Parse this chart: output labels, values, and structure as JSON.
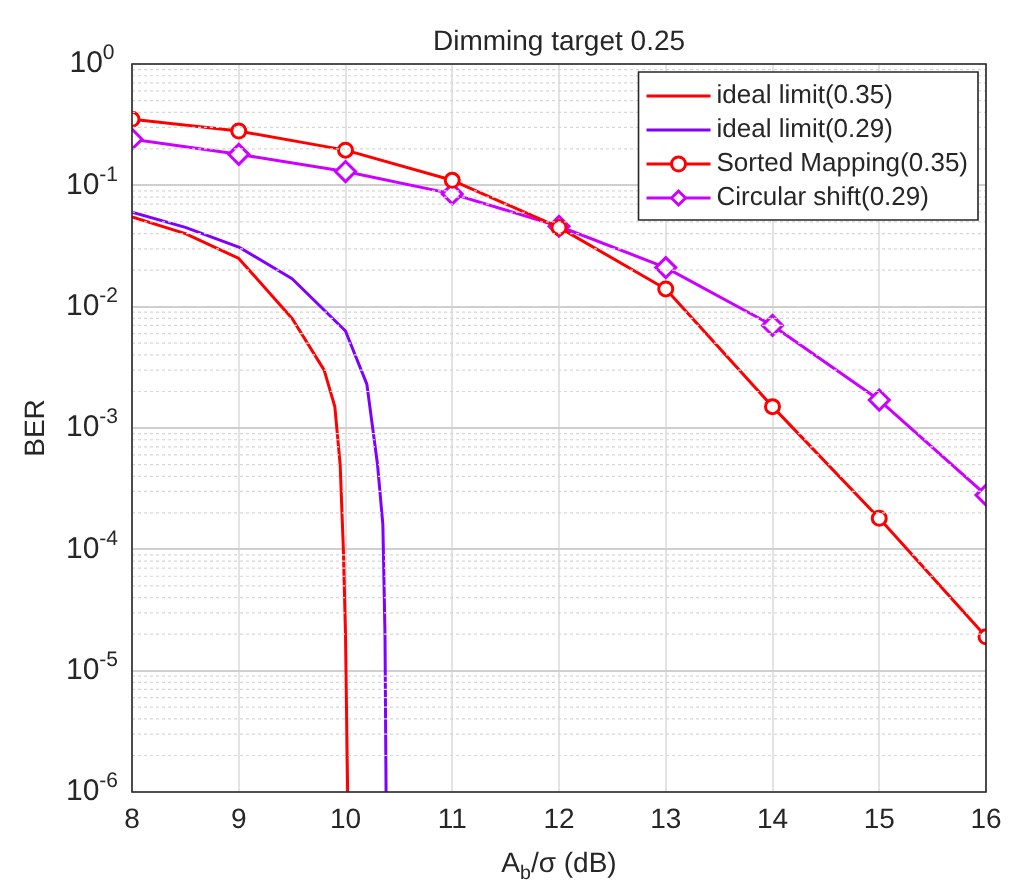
{
  "chart_data": {
    "type": "line",
    "title": "Dimming target 0.25",
    "xlabel": "A$_{b}$/σ (dB)",
    "ylabel": "BER",
    "xlim": [
      8,
      16
    ],
    "xticks": [
      8,
      9,
      10,
      11,
      12,
      13,
      14,
      15,
      16
    ],
    "ylim": [
      1e-06,
      1
    ],
    "yticks": [
      {
        "value": 1e-06,
        "label": "10$^{-6}$"
      },
      {
        "value": 1e-05,
        "label": "10$^{-5}$"
      },
      {
        "value": 0.0001,
        "label": "10$^{-4}$"
      },
      {
        "value": 0.001,
        "label": "10$^{-3}$"
      },
      {
        "value": 0.01,
        "label": "10$^{-2}$"
      },
      {
        "value": 0.1,
        "label": "10$^{-1}$"
      },
      {
        "value": 1,
        "label": "10$^{0}$"
      }
    ],
    "log": "y",
    "grid": true,
    "legend": "top right",
    "series": [
      {
        "name": "ideal limit(0.35)",
        "color": "#ff0000",
        "marker": "none",
        "x": [
          8,
          8.5,
          9,
          9.5,
          9.8,
          9.9,
          9.95,
          9.98,
          10,
          10.02
        ],
        "values": [
          0.055,
          0.04,
          0.025,
          0.008,
          0.003,
          0.0015,
          0.0005,
          0.0001,
          2e-05,
          1e-06
        ]
      },
      {
        "name": "ideal limit(0.29)",
        "color": "#8000ff",
        "marker": "none",
        "x": [
          8,
          8.5,
          9,
          9.5,
          10,
          10.2,
          10.3,
          10.35,
          10.37,
          10.38
        ],
        "values": [
          0.06,
          0.045,
          0.031,
          0.017,
          0.0063,
          0.0023,
          0.0005,
          0.00016,
          2e-05,
          1e-06
        ]
      },
      {
        "name": "Sorted Mapping(0.35)",
        "color": "#ff0000",
        "marker": "circle",
        "x": [
          8,
          9,
          10,
          11,
          12,
          13,
          14,
          15,
          16
        ],
        "values": [
          0.35,
          0.28,
          0.195,
          0.11,
          0.045,
          0.014,
          0.0015,
          0.00018,
          1.9e-05
        ]
      },
      {
        "name": "Circular shift(0.29)",
        "color": "#cc00ff",
        "marker": "diamond",
        "x": [
          8,
          9,
          10,
          11,
          12,
          13,
          14,
          15,
          16
        ],
        "values": [
          0.24,
          0.18,
          0.13,
          0.085,
          0.046,
          0.021,
          0.007,
          0.0017,
          0.00028
        ]
      }
    ]
  }
}
